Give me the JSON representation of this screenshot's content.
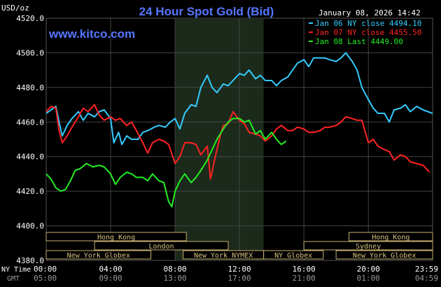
{
  "chart_data": {
    "type": "line",
    "title": "24 Hour Spot Gold (Bid)",
    "unit_label": "USD/oz",
    "watermark": "www.kitco.com",
    "timestamp": "January 08, 2026 14:42",
    "ylim": [
      4380,
      4520
    ],
    "y_ticks": [
      "4520.0",
      "4500.0",
      "4480.0",
      "4460.0",
      "4440.0",
      "4420.0",
      "4400.0",
      "4380.0"
    ],
    "x_axis": {
      "ny_label": "NY Time",
      "gmt_label": "GMT",
      "ny_ticks": [
        "00:00",
        "04:00",
        "08:00",
        "12:00",
        "16:00",
        "20:00",
        "23:59"
      ],
      "gmt_ticks": [
        "05:00",
        "09:00",
        "13:00",
        "17:00",
        "21:00",
        "01:00",
        "04:59"
      ]
    },
    "legend": [
      {
        "text": "Jan 06 NY close 4494.10",
        "color": "#33ccff"
      },
      {
        "text": "Jan 07 NY close 4455.50",
        "color": "#ff2222"
      },
      {
        "text": "Jan 08 Last 4449.00",
        "color": "#22ee22"
      }
    ],
    "markets": [
      {
        "label": "Hong Kong",
        "start": 0.0,
        "end": 8.7
      },
      {
        "label": "Hong Kong",
        "start": 18.8,
        "end": 23.99
      },
      {
        "label": "London",
        "start": 3.0,
        "end": 11.3
      },
      {
        "label": "Sydney",
        "start": 16.0,
        "end": 23.99
      },
      {
        "label": "New York Globex",
        "start": 0.0,
        "end": 6.5
      },
      {
        "label": "New York NYMEX",
        "start": 8.5,
        "end": 13.5
      },
      {
        "label": "NY Globex",
        "start": 13.5,
        "end": 17.2
      },
      {
        "label": "New York Globex",
        "start": 18.0,
        "end": 23.99
      }
    ],
    "highlight": {
      "start": 8.0,
      "end": 13.5
    },
    "series": [
      {
        "name": "Jan 06 NY close 4494.10",
        "color": "#33ccff",
        "x": [
          0,
          0.6,
          0.8,
          1.0,
          1.3,
          1.6,
          2.0,
          2.3,
          2.6,
          3.0,
          3.3,
          3.6,
          4.0,
          4.2,
          4.5,
          4.7,
          5.0,
          5.3,
          5.7,
          6.0,
          6.3,
          6.7,
          7.0,
          7.4,
          7.7,
          8.0,
          8.3,
          8.6,
          9.0,
          9.3,
          9.6,
          10.0,
          10.3,
          10.6,
          11.0,
          11.3,
          11.6,
          12.0,
          12.3,
          12.6,
          13.0,
          13.3,
          13.6,
          14.0,
          14.3,
          14.6,
          15.0,
          15.3,
          15.6,
          16.0,
          16.3,
          16.6,
          17.0,
          17.3,
          17.6,
          18.0,
          18.3,
          18.6,
          19.0,
          19.3,
          19.6,
          20.0,
          20.3,
          20.6,
          21.0,
          21.3,
          21.6,
          22.0,
          22.3,
          22.6,
          23.0,
          23.4,
          23.99
        ],
        "y": [
          4465,
          4469,
          4460,
          4452,
          4458,
          4462,
          4466,
          4461,
          4465,
          4463,
          4466,
          4467,
          4462,
          4448,
          4454,
          4447,
          4452,
          4450,
          4450,
          4454,
          4455,
          4457,
          4458,
          4457,
          4460,
          4462,
          4456,
          4465,
          4470,
          4469,
          4480,
          4487,
          4480,
          4477,
          4482,
          4481,
          4484,
          4488,
          4487,
          4490,
          4485,
          4487,
          4484,
          4484,
          4481,
          4484,
          4486,
          4490,
          4494,
          4496,
          4492,
          4497,
          4497,
          4497,
          4496,
          4495,
          4497,
          4500,
          4495,
          4490,
          4480,
          4473,
          4468,
          4465,
          4465,
          4460,
          4467,
          4468,
          4470,
          4466,
          4469,
          4467,
          4465
        ]
      },
      {
        "name": "Jan 07 NY close 4455.50",
        "color": "#ff2222",
        "x": [
          0,
          0.3,
          0.6,
          0.8,
          1.0,
          1.3,
          1.6,
          2.0,
          2.3,
          2.6,
          3.0,
          3.3,
          3.6,
          4.0,
          4.3,
          4.6,
          5.0,
          5.3,
          5.6,
          6.0,
          6.3,
          6.6,
          7.0,
          7.3,
          7.6,
          8.0,
          8.3,
          8.6,
          9.0,
          9.3,
          9.6,
          10.0,
          10.2,
          10.5,
          10.8,
          11.0,
          11.3,
          11.6,
          12.0,
          12.3,
          12.6,
          13.0,
          13.3,
          13.6,
          14.0,
          14.3,
          14.6,
          15.0,
          15.3,
          15.6,
          16.0,
          16.3,
          16.6,
          17.0,
          17.3,
          17.6,
          18.0,
          18.3,
          18.6,
          19.0,
          19.3,
          19.6,
          20.0,
          20.3,
          20.6,
          21.0,
          21.3,
          21.6,
          22.0,
          22.3,
          22.6,
          23.0,
          23.4,
          23.8
        ],
        "y": [
          4466,
          4469,
          4468,
          4455,
          4448,
          4452,
          4457,
          4463,
          4468,
          4466,
          4470,
          4464,
          4461,
          4463,
          4461,
          4462,
          4458,
          4460,
          4455,
          4448,
          4442,
          4448,
          4450,
          4449,
          4447,
          4436,
          4440,
          4448,
          4448,
          4447,
          4441,
          4446,
          4427,
          4440,
          4452,
          4458,
          4459,
          4466,
          4461,
          4459,
          4454,
          4453,
          4452,
          4449,
          4452,
          4456,
          4458,
          4455,
          4455,
          4457,
          4456,
          4454,
          4454,
          4455,
          4457,
          4457,
          4458,
          4460,
          4463,
          4462,
          4461,
          4461,
          4448,
          4450,
          4446,
          4444,
          4443,
          4438,
          4441,
          4440,
          4437,
          4436,
          4435,
          4431
        ]
      },
      {
        "name": "Jan 08 Last 4449.00",
        "color": "#22ee22",
        "x": [
          0,
          0.3,
          0.6,
          0.9,
          1.2,
          1.5,
          1.8,
          2.1,
          2.5,
          2.9,
          3.3,
          3.6,
          4.0,
          4.3,
          4.6,
          5.0,
          5.3,
          5.6,
          6.0,
          6.3,
          6.6,
          7.0,
          7.3,
          7.6,
          7.8,
          8.0,
          8.3,
          8.6,
          9.0,
          9.3,
          9.6,
          10.0,
          10.3,
          10.6,
          11.0,
          11.3,
          11.6,
          12.0,
          12.3,
          12.6,
          13.0,
          13.3,
          13.6,
          14.0,
          14.3,
          14.6,
          14.9
        ],
        "y": [
          4430,
          4427,
          4422,
          4420,
          4421,
          4426,
          4432,
          4433,
          4436,
          4434,
          4435,
          4434,
          4430,
          4424,
          4428,
          4431,
          4430,
          4428,
          4428,
          4426,
          4430,
          4426,
          4425,
          4414,
          4411,
          4420,
          4426,
          4430,
          4425,
          4428,
          4432,
          4438,
          4444,
          4450,
          4456,
          4460,
          4462,
          4462,
          4460,
          4461,
          4453,
          4455,
          4450,
          4454,
          4450,
          4447,
          4449
        ]
      }
    ]
  }
}
